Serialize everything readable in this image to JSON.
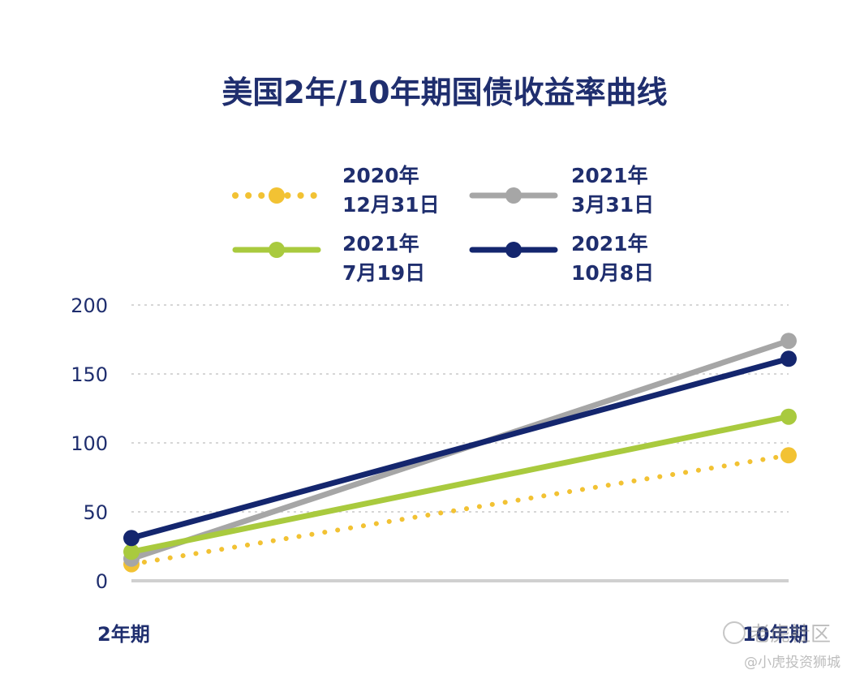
{
  "chart_data": {
    "type": "line",
    "title": "美国2年/10年期国债收益率曲线",
    "categories": [
      "2年期",
      "10年期"
    ],
    "ylim": [
      0,
      200
    ],
    "yticks": [
      0,
      50,
      100,
      150,
      200
    ],
    "grid": true,
    "legend_position": "top",
    "series": [
      {
        "name_line1": "2020年",
        "name_line2": "12月31日",
        "values": [
          12,
          91
        ],
        "color": "#F2C233",
        "style": "dotted"
      },
      {
        "name_line1": "2021年",
        "name_line2": "3月31日",
        "values": [
          16,
          174
        ],
        "color": "#A6A6A6",
        "style": "solid"
      },
      {
        "name_line1": "2021年",
        "name_line2": "7月19日",
        "values": [
          21,
          119
        ],
        "color": "#A9CA3E",
        "style": "solid"
      },
      {
        "name_line1": "2021年",
        "name_line2": "10月8日",
        "values": [
          31,
          161
        ],
        "color": "#14266E",
        "style": "solid"
      }
    ]
  },
  "colors": {
    "text": "#1F2E6E",
    "grid": "#D6D6D6",
    "axis": "#D0D0D0"
  },
  "watermark": {
    "line1": "老虎社区",
    "line2": "@小虎投资狮城"
  }
}
